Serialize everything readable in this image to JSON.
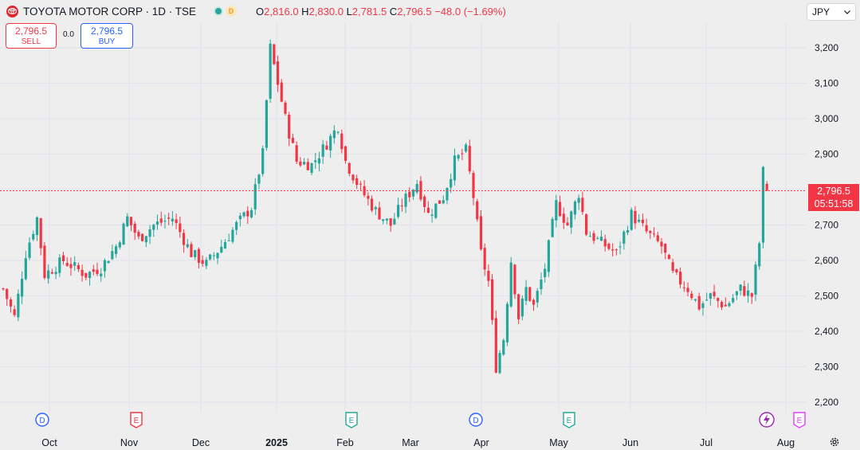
{
  "header": {
    "symbol_title": "TOYOTA MOTOR CORP · 1D · TSE",
    "ohlc": {
      "o_label": "O",
      "o": "2,816.0",
      "h_label": "H",
      "h": "2,830.0",
      "l_label": "L",
      "l": "2,781.5",
      "c_label": "C",
      "c": "2,796.5",
      "change": "−48.0 (−1.69%)"
    },
    "dividend_badge": "D"
  },
  "trade": {
    "sell_price": "2,796.5",
    "sell_label": "SELL",
    "spread": "0.0",
    "buy_price": "2,796.5",
    "buy_label": "BUY"
  },
  "currency": "JPY",
  "last_price": {
    "value": "2,796.5",
    "countdown": "05:51:58"
  },
  "colors": {
    "up": "#26a69a",
    "down": "#f23645",
    "grid": "#e0e3eb",
    "bg": "#eeeeef",
    "axis_text": "#131722"
  },
  "chart_data": {
    "type": "candlestick",
    "title": "TOYOTA MOTOR CORP · 1D · TSE",
    "ylim": [
      2150,
      3250
    ],
    "y_ticks": [
      3200,
      3100,
      3000,
      2900,
      2800,
      2700,
      2600,
      2500,
      2400,
      2300,
      2200
    ],
    "y_tick_labels": [
      "3,200",
      "3,100",
      "3,000",
      "2,900",
      "2,800",
      "2,700",
      "2,600",
      "2,500",
      "2,400",
      "2,300",
      "2,200"
    ],
    "x_tick_labels": [
      "Oct",
      "Nov",
      "Dec",
      "2025",
      "Feb",
      "Mar",
      "Apr",
      "May",
      "Jun",
      "Jul",
      "Aug"
    ],
    "last_price": 2796.5,
    "anchors": [
      {
        "d": 0,
        "v": 2520
      },
      {
        "d": 3,
        "v": 2440
      },
      {
        "d": 6,
        "v": 2620
      },
      {
        "d": 9,
        "v": 2720
      },
      {
        "d": 11,
        "v": 2560
      },
      {
        "d": 16,
        "v": 2600
      },
      {
        "d": 22,
        "v": 2560
      },
      {
        "d": 26,
        "v": 2580
      },
      {
        "d": 30,
        "v": 2640
      },
      {
        "d": 33,
        "v": 2720
      },
      {
        "d": 36,
        "v": 2660
      },
      {
        "d": 40,
        "v": 2700
      },
      {
        "d": 45,
        "v": 2720
      },
      {
        "d": 50,
        "v": 2620
      },
      {
        "d": 54,
        "v": 2590
      },
      {
        "d": 58,
        "v": 2640
      },
      {
        "d": 62,
        "v": 2700
      },
      {
        "d": 66,
        "v": 2750
      },
      {
        "d": 69,
        "v": 2900
      },
      {
        "d": 71,
        "v": 3200
      },
      {
        "d": 73,
        "v": 3100
      },
      {
        "d": 75,
        "v": 3000
      },
      {
        "d": 78,
        "v": 2880
      },
      {
        "d": 82,
        "v": 2870
      },
      {
        "d": 86,
        "v": 2930
      },
      {
        "d": 89,
        "v": 2980
      },
      {
        "d": 91,
        "v": 2880
      },
      {
        "d": 95,
        "v": 2800
      },
      {
        "d": 99,
        "v": 2740
      },
      {
        "d": 103,
        "v": 2700
      },
      {
        "d": 106,
        "v": 2760
      },
      {
        "d": 110,
        "v": 2820
      },
      {
        "d": 113,
        "v": 2730
      },
      {
        "d": 117,
        "v": 2780
      },
      {
        "d": 120,
        "v": 2880
      },
      {
        "d": 123,
        "v": 2910
      },
      {
        "d": 125,
        "v": 2780
      },
      {
        "d": 127,
        "v": 2620
      },
      {
        "d": 129,
        "v": 2540
      },
      {
        "d": 131,
        "v": 2300
      },
      {
        "d": 133,
        "v": 2380
      },
      {
        "d": 135,
        "v": 2600
      },
      {
        "d": 137,
        "v": 2440
      },
      {
        "d": 139,
        "v": 2520
      },
      {
        "d": 141,
        "v": 2470
      },
      {
        "d": 144,
        "v": 2580
      },
      {
        "d": 147,
        "v": 2760
      },
      {
        "d": 150,
        "v": 2700
      },
      {
        "d": 153,
        "v": 2790
      },
      {
        "d": 155,
        "v": 2680
      },
      {
        "d": 159,
        "v": 2650
      },
      {
        "d": 163,
        "v": 2620
      },
      {
        "d": 167,
        "v": 2730
      },
      {
        "d": 171,
        "v": 2680
      },
      {
        "d": 175,
        "v": 2640
      },
      {
        "d": 178,
        "v": 2560
      },
      {
        "d": 182,
        "v": 2520
      },
      {
        "d": 185,
        "v": 2470
      },
      {
        "d": 188,
        "v": 2500
      },
      {
        "d": 192,
        "v": 2470
      },
      {
        "d": 196,
        "v": 2520
      },
      {
        "d": 199,
        "v": 2500
      },
      {
        "d": 201,
        "v": 2650
      },
      {
        "d": 202,
        "v": 2850
      },
      {
        "d": 203,
        "v": 2796.5
      }
    ],
    "event_markers": [
      {
        "label": "D",
        "month": "Oct",
        "kind": "dividend"
      },
      {
        "label": "E",
        "month": "Nov",
        "kind": "earnings"
      },
      {
        "label": "E",
        "month": "Feb",
        "kind": "earnings"
      },
      {
        "label": "D",
        "month": "Apr",
        "kind": "dividend"
      },
      {
        "label": "E",
        "month": "May",
        "kind": "earnings"
      },
      {
        "label": "E",
        "month": "Aug",
        "kind": "earnings"
      }
    ]
  }
}
